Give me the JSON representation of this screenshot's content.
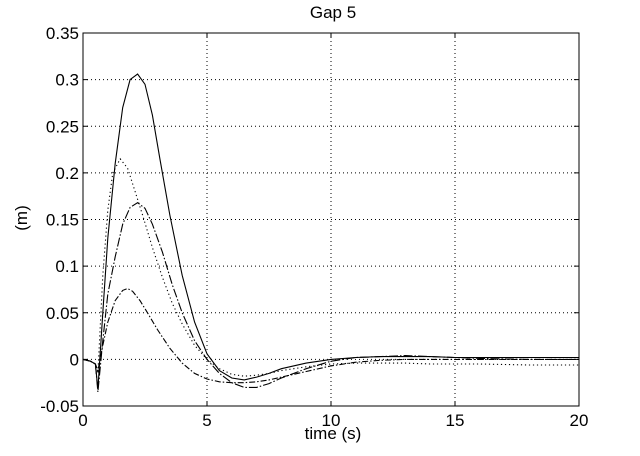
{
  "chart_data": {
    "type": "line",
    "title": "Gap 5",
    "xlabel": "time (s)",
    "ylabel": "(m)",
    "xlim": [
      0,
      20
    ],
    "ylim": [
      -0.05,
      0.35
    ],
    "xticks": [
      0,
      5,
      10,
      15,
      20
    ],
    "xtick_labels": [
      "0",
      "5",
      "10",
      "15",
      "20"
    ],
    "yticks": [
      -0.05,
      0,
      0.05,
      0.1,
      0.15,
      0.2,
      0.25,
      0.3,
      0.35
    ],
    "ytick_labels": [
      "-0.05",
      "0",
      "0.05",
      "0.1",
      "0.15",
      "0.2",
      "0.25",
      "0.3",
      "0.35"
    ],
    "grid": true,
    "series": [
      {
        "style": "solid",
        "x": [
          0,
          0.3,
          0.5,
          0.6,
          0.8,
          1.0,
          1.3,
          1.6,
          1.9,
          2.2,
          2.5,
          2.8,
          3.1,
          3.5,
          4.0,
          4.5,
          5.0,
          5.5,
          6.0,
          6.5,
          7.0,
          7.5,
          8.0,
          9.0,
          10.0,
          11.0,
          12.0,
          13.0,
          14.0,
          15.0,
          16.0,
          18.0,
          20.0
        ],
        "y": [
          0.0,
          -0.002,
          -0.005,
          -0.032,
          0.05,
          0.13,
          0.21,
          0.27,
          0.3,
          0.306,
          0.295,
          0.262,
          0.215,
          0.155,
          0.09,
          0.04,
          0.006,
          -0.012,
          -0.02,
          -0.022,
          -0.019,
          -0.015,
          -0.01,
          -0.004,
          0.0,
          0.002,
          0.003,
          0.003,
          0.003,
          0.002,
          0.002,
          0.002,
          0.002
        ]
      },
      {
        "style": "dashdot-long",
        "x": [
          0,
          0.3,
          0.5,
          0.6,
          0.8,
          1.0,
          1.3,
          1.6,
          1.9,
          2.2,
          2.5,
          2.8,
          3.2,
          3.6,
          4.0,
          4.5,
          5.0,
          5.5,
          6.0,
          6.5,
          7.0,
          7.5,
          8.0,
          9.0,
          10.0,
          11.0,
          12.0,
          13.0,
          14.0,
          15.0,
          16.0,
          18.0,
          20.0
        ],
        "y": [
          0.0,
          -0.002,
          -0.005,
          -0.035,
          0.02,
          0.07,
          0.11,
          0.145,
          0.163,
          0.168,
          0.162,
          0.145,
          0.115,
          0.08,
          0.05,
          0.02,
          0.0,
          -0.015,
          -0.025,
          -0.03,
          -0.03,
          -0.026,
          -0.02,
          -0.01,
          -0.002,
          0.002,
          0.003,
          0.004,
          0.003,
          0.002,
          0.001,
          0.0,
          0.0
        ]
      },
      {
        "style": "dotted",
        "x": [
          0,
          0.3,
          0.5,
          0.6,
          0.8,
          1.0,
          1.2,
          1.5,
          1.8,
          2.1,
          2.4,
          2.8,
          3.2,
          3.6,
          4.0,
          4.5,
          5.0,
          5.5,
          6.0,
          6.5,
          7.0,
          7.5,
          8.0,
          9.0,
          10.0,
          11.0,
          12.0,
          13.0,
          14.0,
          15.0,
          16.0,
          18.0,
          20.0
        ],
        "y": [
          0.0,
          -0.002,
          -0.005,
          -0.015,
          0.09,
          0.16,
          0.2,
          0.215,
          0.205,
          0.18,
          0.155,
          0.12,
          0.088,
          0.06,
          0.038,
          0.015,
          0.0,
          -0.01,
          -0.016,
          -0.018,
          -0.017,
          -0.015,
          -0.012,
          -0.008,
          -0.005,
          -0.004,
          -0.004,
          -0.004,
          -0.005,
          -0.005,
          -0.005,
          -0.006,
          -0.006
        ]
      },
      {
        "style": "dashdot",
        "x": [
          0,
          0.3,
          0.5,
          0.6,
          0.8,
          1.0,
          1.3,
          1.6,
          1.8,
          2.0,
          2.3,
          2.6,
          3.0,
          3.5,
          4.0,
          4.5,
          5.0,
          5.5,
          6.0,
          6.5,
          7.0,
          7.5,
          8.0,
          9.0,
          10.0,
          11.0,
          12.0,
          13.0,
          14.0,
          15.0,
          16.0,
          18.0,
          20.0
        ],
        "y": [
          0.0,
          -0.002,
          -0.005,
          -0.012,
          0.015,
          0.04,
          0.063,
          0.074,
          0.076,
          0.073,
          0.063,
          0.05,
          0.032,
          0.012,
          -0.004,
          -0.015,
          -0.021,
          -0.024,
          -0.025,
          -0.025,
          -0.024,
          -0.022,
          -0.019,
          -0.013,
          -0.007,
          -0.003,
          -0.001,
          0.0,
          0.0,
          0.0,
          0.0,
          0.0,
          0.0
        ]
      }
    ]
  }
}
